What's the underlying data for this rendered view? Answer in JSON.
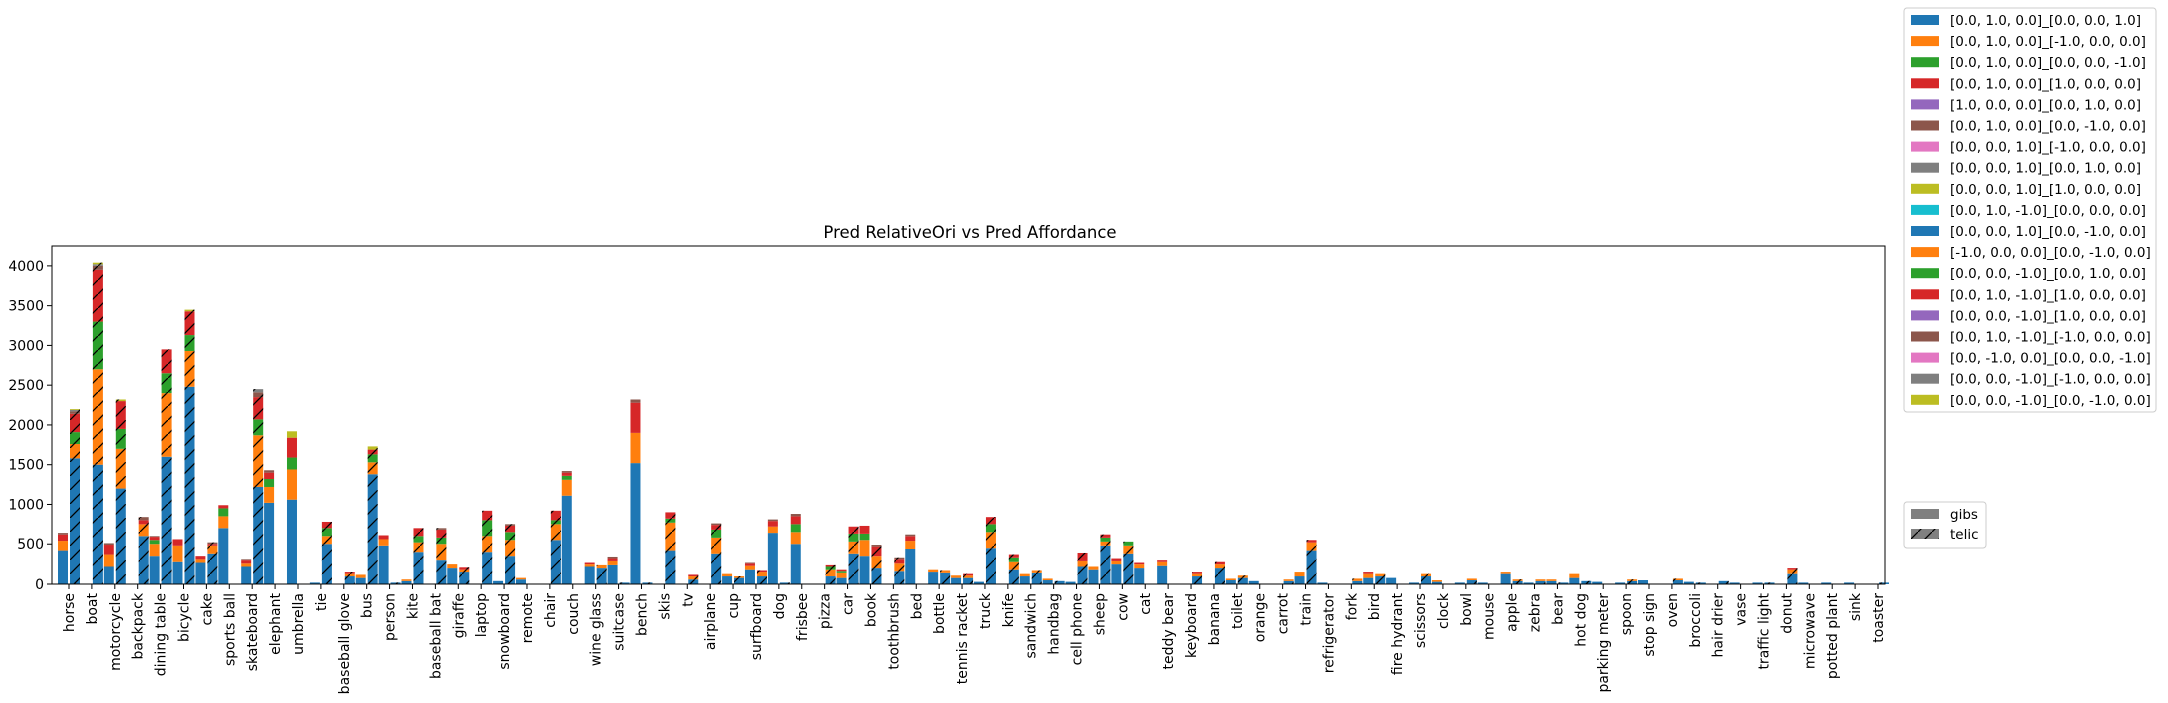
{
  "chart_data": {
    "type": "bar",
    "stacked": true,
    "title": "Pred RelativeOri vs Pred Affordance",
    "xlabel": "",
    "ylabel": "",
    "ylim": [
      0,
      4250
    ],
    "yticks": [
      0,
      500,
      1000,
      1500,
      2000,
      2500,
      3000,
      3500,
      4000
    ],
    "grid": false,
    "legend_position": "outside-right",
    "categories": [
      "horse",
      "boat",
      "motorcycle",
      "backpack",
      "dining table",
      "bicycle",
      "cake",
      "sports ball",
      "skateboard",
      "elephant",
      "umbrella",
      "tie",
      "baseball glove",
      "bus",
      "person",
      "kite",
      "baseball bat",
      "giraffe",
      "laptop",
      "snowboard",
      "remote",
      "chair",
      "couch",
      "wine glass",
      "suitcase",
      "bench",
      "skis",
      "tv",
      "airplane",
      "cup",
      "surfboard",
      "dog",
      "frisbee",
      "pizza",
      "car",
      "book",
      "toothbrush",
      "bed",
      "bottle",
      "tennis racket",
      "truck",
      "knife",
      "sandwich",
      "handbag",
      "cell phone",
      "sheep",
      "cow",
      "cat",
      "teddy bear",
      "keyboard",
      "banana",
      "toilet",
      "orange",
      "carrot",
      "train",
      "refrigerator",
      "fork",
      "bird",
      "fire hydrant",
      "scissors",
      "clock",
      "bowl",
      "mouse",
      "apple",
      "zebra",
      "bear",
      "hot dog",
      "parking meter",
      "spoon",
      "stop sign",
      "oven",
      "broccoli",
      "hair drier",
      "vase",
      "traffic light",
      "donut",
      "microwave",
      "potted plant",
      "sink",
      "toaster"
    ],
    "series": [
      {
        "name": "[0.0, 1.0, 0.0]_[0.0, 0.0, 1.0]",
        "color": "#1f77b4"
      },
      {
        "name": "[0.0, 1.0, 0.0]_[-1.0, 0.0, 0.0]",
        "color": "#ff7f0e"
      },
      {
        "name": "[0.0, 1.0, 0.0]_[0.0, 0.0, -1.0]",
        "color": "#2ca02c"
      },
      {
        "name": "[0.0, 1.0, 0.0]_[1.0, 0.0, 0.0]",
        "color": "#d62728"
      },
      {
        "name": "[1.0, 0.0, 0.0]_[0.0, 1.0, 0.0]",
        "color": "#9467bd"
      },
      {
        "name": "[0.0, 1.0, 0.0]_[0.0, -1.0, 0.0]",
        "color": "#8c564b"
      },
      {
        "name": "[0.0, 0.0, 1.0]_[-1.0, 0.0, 0.0]",
        "color": "#e377c2"
      },
      {
        "name": "[0.0, 0.0, 1.0]_[0.0, 1.0, 0.0]",
        "color": "#7f7f7f"
      },
      {
        "name": "[0.0, 0.0, 1.0]_[1.0, 0.0, 0.0]",
        "color": "#bcbd22"
      },
      {
        "name": "[0.0, 1.0, -1.0]_[0.0, 0.0, 0.0]",
        "color": "#17becf"
      },
      {
        "name": "[0.0, 0.0, 1.0]_[0.0, -1.0, 0.0]",
        "color": "#1f77b4"
      },
      {
        "name": "[-1.0, 0.0, 0.0]_[0.0, -1.0, 0.0]",
        "color": "#ff7f0e"
      },
      {
        "name": "[0.0, 0.0, -1.0]_[0.0, 1.0, 0.0]",
        "color": "#2ca02c"
      },
      {
        "name": "[0.0, 1.0, -1.0]_[1.0, 0.0, 0.0]",
        "color": "#d62728"
      },
      {
        "name": "[0.0, 0.0, -1.0]_[1.0, 0.0, 0.0]",
        "color": "#9467bd"
      },
      {
        "name": "[0.0, 1.0, -1.0]_[-1.0, 0.0, 0.0]",
        "color": "#8c564b"
      },
      {
        "name": "[0.0, -1.0, 0.0]_[0.0, 0.0, -1.0]",
        "color": "#e377c2"
      },
      {
        "name": "[0.0, 0.0, -1.0]_[-1.0, 0.0, 0.0]",
        "color": "#7f7f7f"
      },
      {
        "name": "[0.0, 0.0, -1.0]_[0.0, -1.0, 0.0]",
        "color": "#bcbd22"
      }
    ],
    "groups": [
      {
        "name": "gibs",
        "hatch": false
      },
      {
        "name": "telic",
        "hatch": true
      }
    ],
    "stacks": {
      "horse": {
        "gibs": [
          420,
          120,
          0,
          80,
          0,
          20
        ],
        "telic": [
          1580,
          180,
          150,
          230,
          0,
          30,
          0,
          20,
          10
        ]
      },
      "boat": {
        "gibs": [
          0
        ],
        "telic": [
          1500,
          1200,
          600,
          650,
          0,
          50,
          0,
          20,
          20
        ]
      },
      "motorcycle": {
        "gibs": [
          220,
          150,
          0,
          120,
          0,
          20
        ],
        "telic": [
          1200,
          500,
          250,
          350,
          0,
          0,
          0,
          0,
          20
        ]
      },
      "backpack": {
        "gibs": [
          0
        ],
        "telic": [
          600,
          150,
          0,
          50,
          0,
          40
        ]
      },
      "dining table": {
        "gibs": [
          350,
          150,
          50,
          40,
          0,
          10
        ],
        "telic": [
          1600,
          800,
          250,
          300,
          0,
          0,
          0,
          0,
          0
        ]
      },
      "bicycle": {
        "gibs": [
          280,
          200,
          0,
          80,
          0,
          0
        ],
        "telic": [
          2480,
          450,
          200,
          300,
          0,
          0,
          0,
          0,
          20
        ]
      },
      "cake": {
        "gibs": [
          270,
          40,
          0,
          40
        ],
        "telic": [
          380,
          100,
          0,
          20,
          0,
          20
        ]
      },
      "sports ball": {
        "gibs": [
          700,
          150,
          100,
          40
        ],
        "telic": [
          0
        ]
      },
      "skateboard": {
        "gibs": [
          220,
          40,
          0,
          40,
          0,
          10
        ],
        "telic": [
          1220,
          650,
          200,
          280,
          0,
          60,
          0,
          40,
          0
        ]
      },
      "elephant": {
        "gibs": [
          1020,
          200,
          100,
          80,
          0,
          30
        ],
        "telic": [
          0
        ]
      },
      "umbrella": {
        "gibs": [
          1060,
          380,
          150,
          250,
          0,
          0,
          0,
          0,
          80
        ],
        "telic": [
          0
        ]
      },
      "tie": {
        "gibs": [
          20
        ],
        "telic": [
          500,
          100,
          100,
          80
        ]
      },
      "baseball glove": {
        "gibs": [
          0
        ],
        "telic": [
          100,
          30,
          0,
          20
        ]
      },
      "bus": {
        "gibs": [
          80,
          40
        ],
        "telic": [
          1380,
          150,
          100,
          60,
          0,
          0,
          0,
          0,
          40
        ]
      },
      "person": {
        "gibs": [
          480,
          80,
          0,
          50
        ],
        "telic": [
          20
        ]
      },
      "kite": {
        "gibs": [
          40,
          20
        ],
        "telic": [
          400,
          120,
          80,
          100
        ]
      },
      "baseball bat": {
        "gibs": [
          0
        ],
        "telic": [
          300,
          200,
          80,
          100,
          0,
          20
        ]
      },
      "giraffe": {
        "gibs": [
          200,
          50
        ],
        "telic": [
          150,
          30,
          0,
          30
        ]
      },
      "laptop": {
        "gibs": [
          0
        ],
        "telic": [
          400,
          200,
          200,
          120
        ]
      },
      "snowboard": {
        "gibs": [
          40
        ],
        "telic": [
          350,
          200,
          100,
          80,
          0,
          20
        ]
      },
      "remote": {
        "gibs": [
          60,
          20
        ],
        "telic": [
          0
        ]
      },
      "chair": {
        "gibs": [
          0
        ],
        "telic": [
          550,
          200,
          50,
          120
        ]
      },
      "couch": {
        "gibs": [
          1110,
          200,
          50,
          40,
          0,
          20
        ],
        "telic": [
          0
        ]
      },
      "wine glass": {
        "gibs": [
          220,
          30,
          0,
          20
        ],
        "telic": [
          200,
          40
        ]
      },
      "suitcase": {
        "gibs": [
          240,
          50,
          0,
          30,
          0,
          20
        ],
        "telic": [
          20
        ]
      },
      "bench": {
        "gibs": [
          1520,
          380,
          0,
          380,
          0,
          40
        ],
        "telic": [
          20
        ]
      },
      "skis": {
        "gibs": [
          0
        ],
        "telic": [
          420,
          350,
          50,
          80
        ]
      },
      "tv": {
        "gibs": [
          0
        ],
        "telic": [
          60,
          40,
          0,
          20
        ]
      },
      "airplane": {
        "gibs": [
          0
        ],
        "telic": [
          380,
          200,
          100,
          60,
          0,
          20
        ]
      },
      "cup": {
        "gibs": [
          100,
          30
        ],
        "telic": [
          80,
          20
        ]
      },
      "surfboard": {
        "gibs": [
          180,
          50,
          0,
          30,
          0,
          10
        ],
        "telic": [
          100,
          50,
          0,
          20
        ]
      },
      "dog": {
        "gibs": [
          640,
          80,
          0,
          70,
          0,
          20
        ],
        "telic": [
          20
        ]
      },
      "frisbee": {
        "gibs": [
          500,
          150,
          100,
          100,
          0,
          30
        ],
        "telic": [
          0
        ]
      },
      "pizza": {
        "gibs": [
          0
        ],
        "telic": [
          100,
          80,
          40,
          20
        ]
      },
      "car": {
        "gibs": [
          80,
          60,
          20,
          20
        ],
        "telic": [
          380,
          150,
          100,
          90
        ]
      },
      "book": {
        "gibs": [
          350,
          200,
          80,
          100
        ],
        "telic": [
          200,
          150,
          0,
          120,
          0,
          20
        ]
      },
      "toothbrush": {
        "gibs": [
          0
        ],
        "telic": [
          160,
          100,
          0,
          50,
          0,
          20
        ]
      },
      "bed": {
        "gibs": [
          440,
          100,
          0,
          60,
          0,
          20
        ],
        "telic": [
          0
        ]
      },
      "bottle": {
        "gibs": [
          150,
          30
        ],
        "telic": [
          140,
          30
        ]
      },
      "tennis racket": {
        "gibs": [
          80,
          30
        ],
        "telic": [
          80,
          30,
          0,
          20
        ]
      },
      "truck": {
        "gibs": [
          30
        ],
        "telic": [
          450,
          200,
          100,
          90
        ]
      },
      "knife": {
        "gibs": [
          0
        ],
        "telic": [
          180,
          100,
          50,
          40
        ]
      },
      "sandwich": {
        "gibs": [
          100,
          30
        ],
        "telic": [
          140,
          30
        ]
      },
      "handbag": {
        "gibs": [
          50,
          20
        ],
        "telic": [
          40
        ]
      },
      "cell phone": {
        "gibs": [
          30
        ],
        "telic": [
          220,
          70,
          0,
          100
        ]
      },
      "sheep": {
        "gibs": [
          180,
          40
        ],
        "telic": [
          480,
          50,
          50,
          40
        ]
      },
      "cow": {
        "gibs": [
          250,
          40,
          0,
          30
        ],
        "telic": [
          380,
          100,
          50,
          0
        ]
      },
      "cat": {
        "gibs": [
          200,
          50,
          0,
          20
        ],
        "telic": [
          0
        ]
      },
      "teddy bear": {
        "gibs": [
          230,
          50,
          0,
          20
        ],
        "telic": [
          0
        ]
      },
      "keyboard": {
        "gibs": [
          0
        ],
        "telic": [
          100,
          30,
          0,
          20
        ]
      },
      "banana": {
        "gibs": [
          0
        ],
        "telic": [
          200,
          50,
          0,
          30
        ]
      },
      "toilet": {
        "gibs": [
          50,
          20
        ],
        "telic": [
          80,
          30
        ]
      },
      "orange": {
        "gibs": [
          40
        ],
        "telic": [
          0
        ]
      },
      "carrot": {
        "gibs": [
          0
        ],
        "telic": [
          40,
          20
        ]
      },
      "train": {
        "gibs": [
          100,
          50
        ],
        "telic": [
          420,
          100,
          0,
          30
        ]
      },
      "refrigerator": {
        "gibs": [
          20
        ],
        "telic": [
          0
        ]
      },
      "fork": {
        "gibs": [
          0
        ],
        "telic": [
          40,
          30
        ]
      },
      "bird": {
        "gibs": [
          80,
          50,
          0,
          20
        ],
        "telic": [
          100,
          30
        ]
      },
      "fire hydrant": {
        "gibs": [
          80
        ],
        "telic": [
          0
        ]
      },
      "scissors": {
        "gibs": [
          20
        ],
        "telic": [
          100,
          30
        ]
      },
      "clock": {
        "gibs": [
          30,
          20
        ],
        "telic": [
          0
        ]
      },
      "bowl": {
        "gibs": [
          20
        ],
        "telic": [
          50,
          20
        ]
      },
      "mouse": {
        "gibs": [
          20
        ],
        "telic": [
          0
        ]
      },
      "apple": {
        "gibs": [
          130,
          20
        ],
        "telic": [
          40,
          20
        ]
      },
      "zebra": {
        "gibs": [
          20
        ],
        "telic": [
          40,
          20
        ]
      },
      "bear": {
        "gibs": [
          40,
          20
        ],
        "telic": [
          20
        ]
      },
      "hot dog": {
        "gibs": [
          80,
          50
        ],
        "telic": [
          40
        ]
      },
      "parking meter": {
        "gibs": [
          30
        ],
        "telic": [
          0
        ]
      },
      "spoon": {
        "gibs": [
          20
        ],
        "telic": [
          40,
          20
        ]
      },
      "stop sign": {
        "gibs": [
          50
        ],
        "telic": [
          0
        ]
      },
      "oven": {
        "gibs": [
          0
        ],
        "telic": [
          50,
          20
        ]
      },
      "broccoli": {
        "gibs": [
          30
        ],
        "telic": [
          20
        ]
      },
      "hair drier": {
        "gibs": [
          0
        ],
        "telic": [
          40
        ]
      },
      "vase": {
        "gibs": [
          20
        ],
        "telic": [
          0
        ]
      },
      "traffic light": {
        "gibs": [
          20
        ],
        "telic": [
          20
        ]
      },
      "donut": {
        "gibs": [
          0
        ],
        "telic": [
          130,
          50,
          0,
          20
        ]
      },
      "microwave": {
        "gibs": [
          20
        ],
        "telic": [
          0
        ]
      },
      "potted plant": {
        "gibs": [
          20
        ],
        "telic": [
          0
        ]
      },
      "sink": {
        "gibs": [
          20
        ],
        "telic": [
          0
        ]
      },
      "toaster": {
        "gibs": [
          0
        ],
        "telic": [
          20
        ]
      }
    }
  }
}
